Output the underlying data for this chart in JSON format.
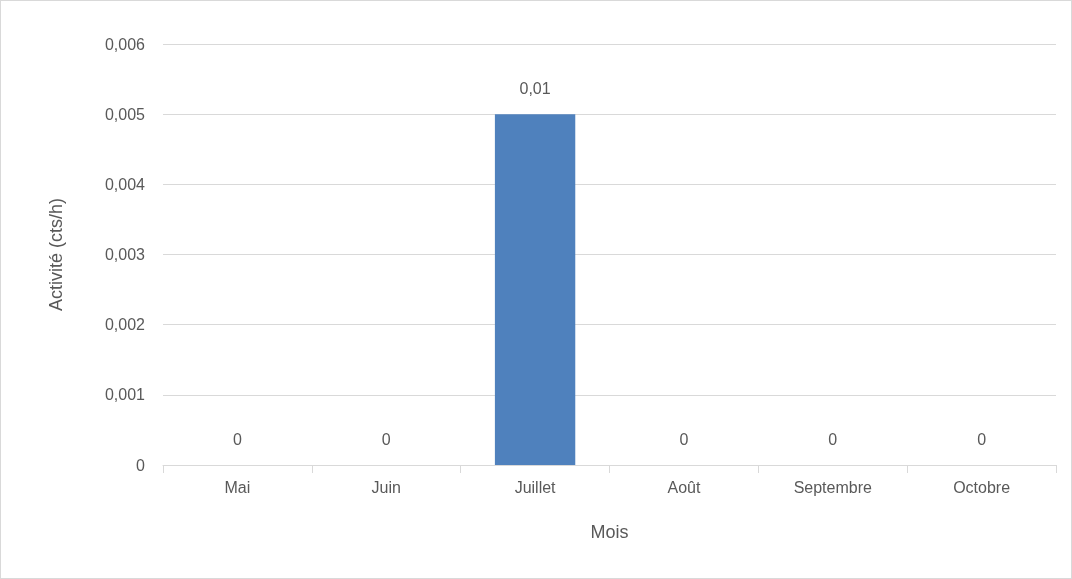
{
  "chart_data": {
    "type": "bar",
    "xlabel": "Mois",
    "ylabel": "Activité (cts/h)",
    "categories": [
      "Mai",
      "Juin",
      "Juillet",
      "Août",
      "Septembre",
      "Octobre"
    ],
    "values": [
      0,
      0,
      0.005,
      0,
      0,
      0
    ],
    "value_labels": [
      "0",
      "0",
      "0,01",
      "0",
      "0",
      "0"
    ],
    "color": "#4f81bd",
    "ylim": [
      0,
      0.006
    ],
    "yticks": [
      0,
      {
        "value": 0.001,
        "label": "0,001"
      },
      {
        "value": 0.002,
        "label": "0,002"
      },
      {
        "value": 0.003,
        "label": "0,003"
      },
      {
        "value": 0.004,
        "label": "0,004"
      },
      {
        "value": 0.005,
        "label": "0,005"
      },
      {
        "value": 0.006,
        "label": "0,006"
      }
    ],
    "grid": true
  }
}
